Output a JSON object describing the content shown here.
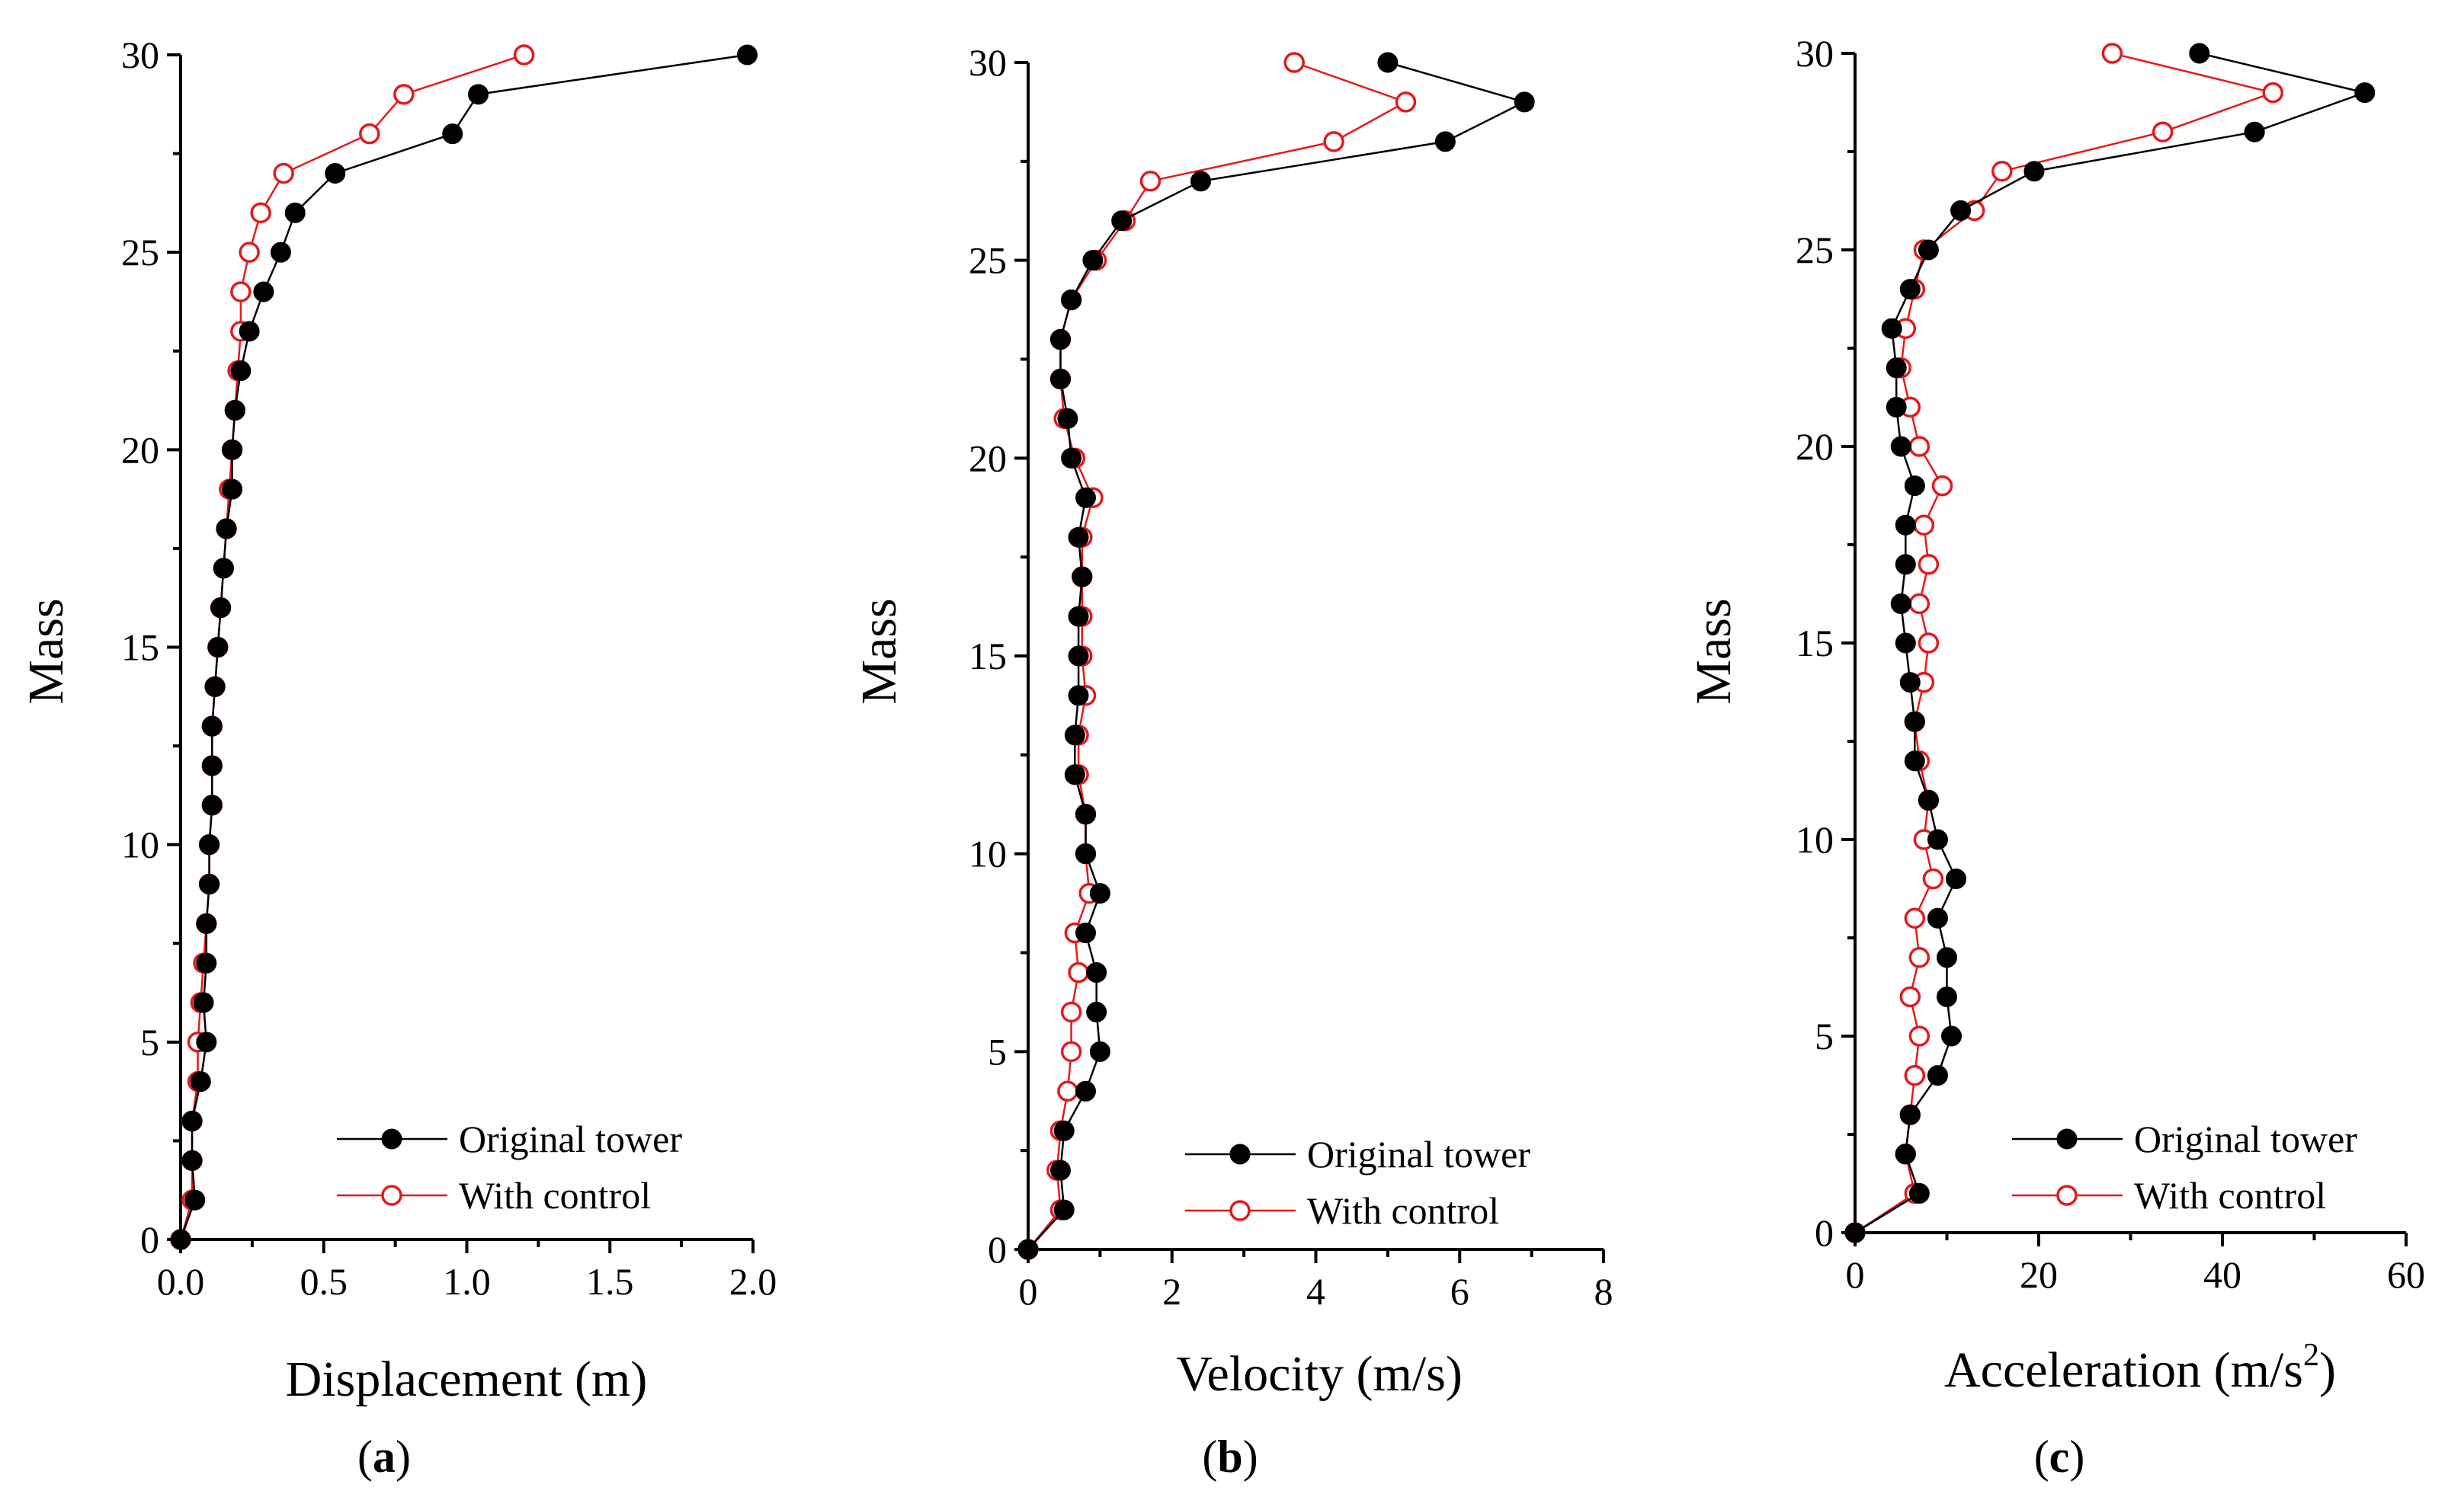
{
  "figure": {
    "series_colors": {
      "Original tower": "#000000",
      "With control": "#e41a1c"
    }
  },
  "chart_data": [
    {
      "type": "line",
      "panel_label": "a",
      "xlabel": "Displacement (m)",
      "ylabel": "Mass",
      "xlim": [
        0,
        2.0
      ],
      "ylim": [
        0,
        30
      ],
      "xticks": [
        0.0,
        0.5,
        1.0,
        1.5,
        2.0
      ],
      "xtick_labels": [
        "0.0",
        "0.5",
        "1.0",
        "1.5",
        "2.0"
      ],
      "yticks": [
        0,
        5,
        10,
        15,
        20,
        25,
        30
      ],
      "ytick_labels": [
        "0",
        "5",
        "10",
        "15",
        "20",
        "25",
        "30"
      ],
      "legend": {
        "position": "lower-right",
        "entries": [
          "Original tower",
          "With control"
        ]
      },
      "series": [
        {
          "name": "Original tower",
          "marker": "filled-circle",
          "points": [
            [
              0.0,
              0
            ],
            [
              0.05,
              1
            ],
            [
              0.04,
              2
            ],
            [
              0.04,
              3
            ],
            [
              0.07,
              4
            ],
            [
              0.09,
              5
            ],
            [
              0.08,
              6
            ],
            [
              0.09,
              7
            ],
            [
              0.09,
              8
            ],
            [
              0.1,
              9
            ],
            [
              0.1,
              10
            ],
            [
              0.11,
              11
            ],
            [
              0.11,
              12
            ],
            [
              0.11,
              13
            ],
            [
              0.12,
              14
            ],
            [
              0.13,
              15
            ],
            [
              0.14,
              16
            ],
            [
              0.15,
              17
            ],
            [
              0.16,
              18
            ],
            [
              0.18,
              19
            ],
            [
              0.18,
              20
            ],
            [
              0.19,
              21
            ],
            [
              0.21,
              22
            ],
            [
              0.24,
              23
            ],
            [
              0.29,
              24
            ],
            [
              0.35,
              25
            ],
            [
              0.4,
              26
            ],
            [
              0.54,
              27
            ],
            [
              0.95,
              28
            ],
            [
              1.04,
              29
            ],
            [
              1.98,
              30
            ]
          ]
        },
        {
          "name": "With control",
          "marker": "open-circle",
          "points": [
            [
              0.0,
              0
            ],
            [
              0.04,
              1
            ],
            [
              0.04,
              2
            ],
            [
              0.04,
              3
            ],
            [
              0.06,
              4
            ],
            [
              0.06,
              5
            ],
            [
              0.07,
              6
            ],
            [
              0.08,
              7
            ],
            [
              0.09,
              8
            ],
            [
              0.1,
              9
            ],
            [
              0.1,
              10
            ],
            [
              0.11,
              11
            ],
            [
              0.11,
              12
            ],
            [
              0.11,
              13
            ],
            [
              0.12,
              14
            ],
            [
              0.13,
              15
            ],
            [
              0.14,
              16
            ],
            [
              0.15,
              17
            ],
            [
              0.16,
              18
            ],
            [
              0.17,
              19
            ],
            [
              0.18,
              20
            ],
            [
              0.19,
              21
            ],
            [
              0.2,
              22
            ],
            [
              0.21,
              23
            ],
            [
              0.21,
              24
            ],
            [
              0.24,
              25
            ],
            [
              0.28,
              26
            ],
            [
              0.36,
              27
            ],
            [
              0.66,
              28
            ],
            [
              0.78,
              29
            ],
            [
              1.2,
              30
            ]
          ]
        }
      ]
    },
    {
      "type": "line",
      "panel_label": "b",
      "xlabel": "Velocity (m/s)",
      "ylabel": "Mass",
      "xlim": [
        0,
        8
      ],
      "ylim": [
        0,
        30
      ],
      "xticks": [
        0,
        2,
        4,
        6,
        8
      ],
      "xtick_labels": [
        "0",
        "2",
        "4",
        "6",
        "8"
      ],
      "yticks": [
        0,
        5,
        10,
        15,
        20,
        25,
        30
      ],
      "ytick_labels": [
        "0",
        "5",
        "10",
        "15",
        "20",
        "25",
        "30"
      ],
      "legend": {
        "position": "lower-right",
        "entries": [
          "Original tower",
          "With control"
        ]
      },
      "series": [
        {
          "name": "Original tower",
          "marker": "filled-circle",
          "points": [
            [
              0.0,
              0
            ],
            [
              0.5,
              1
            ],
            [
              0.45,
              2
            ],
            [
              0.5,
              3
            ],
            [
              0.8,
              4
            ],
            [
              1.0,
              5
            ],
            [
              0.95,
              6
            ],
            [
              0.95,
              7
            ],
            [
              0.8,
              8
            ],
            [
              1.0,
              9
            ],
            [
              0.8,
              10
            ],
            [
              0.8,
              11
            ],
            [
              0.65,
              12
            ],
            [
              0.65,
              13
            ],
            [
              0.7,
              14
            ],
            [
              0.7,
              15
            ],
            [
              0.7,
              16
            ],
            [
              0.75,
              17
            ],
            [
              0.7,
              18
            ],
            [
              0.8,
              19
            ],
            [
              0.6,
              20
            ],
            [
              0.55,
              21
            ],
            [
              0.45,
              22
            ],
            [
              0.45,
              23
            ],
            [
              0.6,
              24
            ],
            [
              0.9,
              25
            ],
            [
              1.3,
              26
            ],
            [
              2.4,
              27
            ],
            [
              5.8,
              28
            ],
            [
              6.9,
              29
            ],
            [
              5.0,
              30
            ]
          ]
        },
        {
          "name": "With control",
          "marker": "open-circle",
          "points": [
            [
              0.0,
              0
            ],
            [
              0.45,
              1
            ],
            [
              0.4,
              2
            ],
            [
              0.45,
              3
            ],
            [
              0.55,
              4
            ],
            [
              0.6,
              5
            ],
            [
              0.6,
              6
            ],
            [
              0.7,
              7
            ],
            [
              0.65,
              8
            ],
            [
              0.85,
              9
            ],
            [
              0.8,
              10
            ],
            [
              0.8,
              11
            ],
            [
              0.7,
              12
            ],
            [
              0.7,
              13
            ],
            [
              0.8,
              14
            ],
            [
              0.75,
              15
            ],
            [
              0.75,
              16
            ],
            [
              0.75,
              17
            ],
            [
              0.75,
              18
            ],
            [
              0.9,
              19
            ],
            [
              0.65,
              20
            ],
            [
              0.5,
              21
            ],
            [
              0.45,
              22
            ],
            [
              0.45,
              23
            ],
            [
              0.6,
              24
            ],
            [
              0.95,
              25
            ],
            [
              1.35,
              26
            ],
            [
              1.7,
              27
            ],
            [
              4.25,
              28
            ],
            [
              5.25,
              29
            ],
            [
              3.7,
              30
            ]
          ]
        }
      ]
    },
    {
      "type": "line",
      "panel_label": "c",
      "xlabel": "Acceleration (m/s",
      "xlabel_sup": "2",
      "xlabel_end": ")",
      "ylabel": "Mass",
      "xlim": [
        0,
        60
      ],
      "ylim": [
        0,
        30
      ],
      "xticks": [
        0,
        20,
        40,
        60
      ],
      "xtick_labels": [
        "0",
        "20",
        "40",
        "60"
      ],
      "yticks": [
        0,
        5,
        10,
        15,
        20,
        25,
        30
      ],
      "ytick_labels": [
        "0",
        "5",
        "10",
        "15",
        "20",
        "25",
        "30"
      ],
      "legend": {
        "position": "lower-right",
        "entries": [
          "Original tower",
          "With control"
        ]
      },
      "series": [
        {
          "name": "Original tower",
          "marker": "filled-circle",
          "points": [
            [
              0.0,
              0
            ],
            [
              7.0,
              1
            ],
            [
              5.5,
              2
            ],
            [
              6.0,
              3
            ],
            [
              9.0,
              4
            ],
            [
              10.5,
              5
            ],
            [
              10.0,
              6
            ],
            [
              10.0,
              7
            ],
            [
              9.0,
              8
            ],
            [
              11.0,
              9
            ],
            [
              9.0,
              10
            ],
            [
              8.0,
              11
            ],
            [
              6.5,
              12
            ],
            [
              6.5,
              13
            ],
            [
              6.0,
              14
            ],
            [
              5.5,
              15
            ],
            [
              5.0,
              16
            ],
            [
              5.5,
              17
            ],
            [
              5.5,
              18
            ],
            [
              6.5,
              19
            ],
            [
              5.0,
              20
            ],
            [
              4.5,
              21
            ],
            [
              4.5,
              22
            ],
            [
              4.0,
              23
            ],
            [
              6.0,
              24
            ],
            [
              8.0,
              25
            ],
            [
              11.5,
              26
            ],
            [
              19.5,
              27
            ],
            [
              43.5,
              28
            ],
            [
              55.5,
              29
            ],
            [
              37.5,
              30
            ]
          ]
        },
        {
          "name": "With control",
          "marker": "open-circle",
          "points": [
            [
              0.0,
              0
            ],
            [
              6.5,
              1
            ],
            [
              5.5,
              2
            ],
            [
              6.0,
              3
            ],
            [
              6.5,
              4
            ],
            [
              7.0,
              5
            ],
            [
              6.0,
              6
            ],
            [
              7.0,
              7
            ],
            [
              6.5,
              8
            ],
            [
              8.5,
              9
            ],
            [
              7.5,
              10
            ],
            [
              8.0,
              11
            ],
            [
              7.0,
              12
            ],
            [
              6.5,
              13
            ],
            [
              7.5,
              14
            ],
            [
              8.0,
              15
            ],
            [
              7.0,
              16
            ],
            [
              8.0,
              17
            ],
            [
              7.5,
              18
            ],
            [
              9.5,
              19
            ],
            [
              7.0,
              20
            ],
            [
              6.0,
              21
            ],
            [
              5.0,
              22
            ],
            [
              5.5,
              23
            ],
            [
              6.5,
              24
            ],
            [
              7.5,
              25
            ],
            [
              13.0,
              26
            ],
            [
              16.0,
              27
            ],
            [
              33.5,
              28
            ],
            [
              45.5,
              29
            ],
            [
              28.0,
              30
            ]
          ]
        }
      ]
    }
  ]
}
